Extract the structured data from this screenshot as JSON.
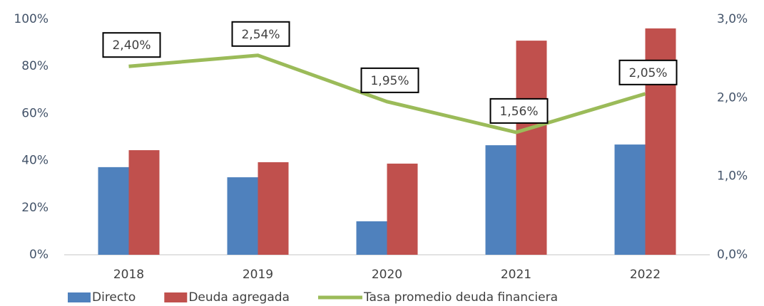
{
  "chart_data": {
    "type": "bar_line",
    "categories": [
      "2018",
      "2019",
      "2020",
      "2021",
      "2022"
    ],
    "series": [
      {
        "name": "Directo",
        "color": "#4f81bd",
        "values": [
          37.2,
          32.9,
          14.2,
          46.5,
          46.8
        ]
      },
      {
        "name": "Deuda agregada",
        "color": "#c0504d",
        "values": [
          44.4,
          39.3,
          38.7,
          90.9,
          96.1
        ]
      },
      {
        "name": "Tasa promedio deuda financiera",
        "color": "#9bbb59",
        "axis": "y2",
        "type": "line",
        "values": [
          2.4,
          2.54,
          1.95,
          1.56,
          2.05
        ],
        "value_labels": [
          "2,40%",
          "2,54%",
          "1,95%",
          "1,56%",
          "2,05%"
        ]
      }
    ],
    "ylim": [
      0,
      100
    ],
    "yticks": [
      {
        "value": 0,
        "label": "0%"
      },
      {
        "value": 20,
        "label": "20%"
      },
      {
        "value": 40,
        "label": "40%"
      },
      {
        "value": 60,
        "label": "60%"
      },
      {
        "value": 80,
        "label": "80%"
      },
      {
        "value": 100,
        "label": "100%"
      }
    ],
    "y2lim": [
      0,
      3.0
    ],
    "y2ticks": [
      {
        "value": 0,
        "label": "0,0%"
      },
      {
        "value": 1.0,
        "label": "1,0%"
      },
      {
        "value": 2.0,
        "label": "2,0%"
      },
      {
        "value": 3.0,
        "label": "3,0%"
      }
    ],
    "grid": false,
    "legend": "bottom"
  }
}
